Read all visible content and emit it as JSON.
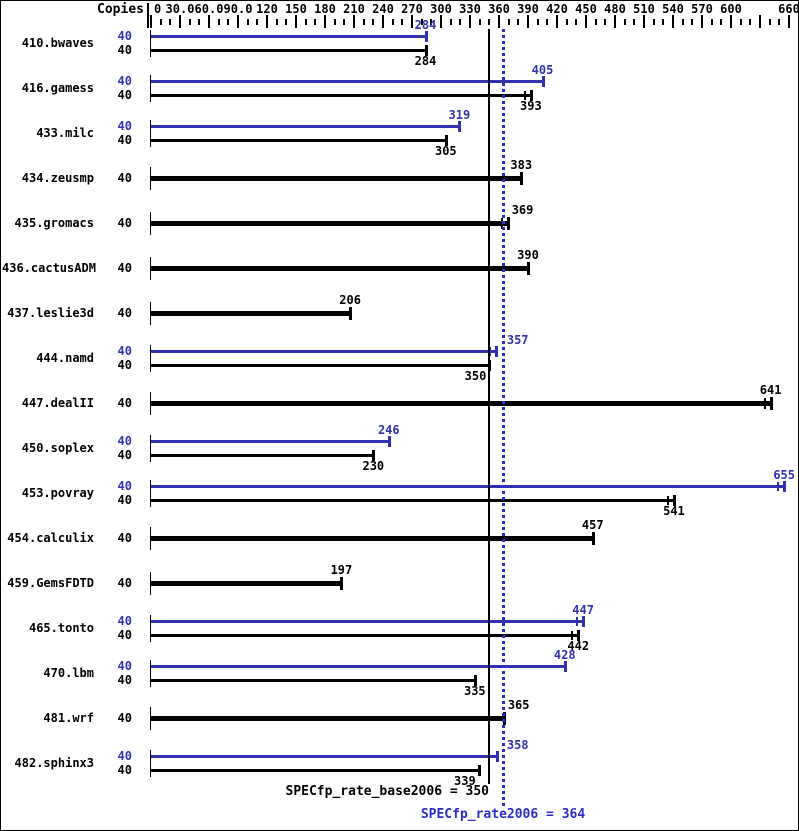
{
  "header": {
    "copies_label": "Copies"
  },
  "colors": {
    "peak": "#3232b0",
    "base": "#000000",
    "dotted_line": "#2b2bd0",
    "background": "#ffffff"
  },
  "axis": {
    "min": 0,
    "max": 660,
    "minor_step": 10,
    "major_step": 30,
    "labels": [
      {
        "v": 0,
        "t": "0"
      },
      {
        "v": 30,
        "t": "30.0"
      },
      {
        "v": 60,
        "t": "60.0"
      },
      {
        "v": 90,
        "t": "90.0"
      },
      {
        "v": 120,
        "t": "120"
      },
      {
        "v": 150,
        "t": "150"
      },
      {
        "v": 180,
        "t": "180"
      },
      {
        "v": 210,
        "t": "210"
      },
      {
        "v": 240,
        "t": "240"
      },
      {
        "v": 270,
        "t": "270"
      },
      {
        "v": 300,
        "t": "300"
      },
      {
        "v": 330,
        "t": "330"
      },
      {
        "v": 360,
        "t": "360"
      },
      {
        "v": 390,
        "t": "390"
      },
      {
        "v": 420,
        "t": "420"
      },
      {
        "v": 450,
        "t": "450"
      },
      {
        "v": 480,
        "t": "480"
      },
      {
        "v": 510,
        "t": "510"
      },
      {
        "v": 540,
        "t": "540"
      },
      {
        "v": 570,
        "t": "570"
      },
      {
        "v": 600,
        "t": "600"
      },
      {
        "v": 660,
        "t": "660"
      }
    ]
  },
  "chart_data": {
    "type": "bar",
    "orientation": "horizontal",
    "title": "",
    "xlabel": "",
    "ylabel": "Copies",
    "xlim": [
      0,
      660
    ],
    "legend": "blue = peak (SPECfp_rate2006), black = base (SPECfp_rate_base2006), bold bar = base and peak equal run",
    "benchmarks": [
      {
        "name": "410.bwaves",
        "bars": [
          {
            "kind": "peak",
            "copies": 40,
            "value": 284,
            "spread": false
          },
          {
            "kind": "base",
            "copies": 40,
            "value": 284,
            "spread": false
          }
        ]
      },
      {
        "name": "416.gamess",
        "bars": [
          {
            "kind": "peak",
            "copies": 40,
            "value": 405,
            "spread": false
          },
          {
            "kind": "base",
            "copies": 40,
            "value": 393,
            "spread": true
          }
        ]
      },
      {
        "name": "433.milc",
        "bars": [
          {
            "kind": "peak",
            "copies": 40,
            "value": 319,
            "spread": false
          },
          {
            "kind": "base",
            "copies": 40,
            "value": 305,
            "spread": false
          }
        ]
      },
      {
        "name": "434.zeusmp",
        "bars": [
          {
            "kind": "both",
            "copies": 40,
            "value": 383,
            "spread": false
          }
        ]
      },
      {
        "name": "435.gromacs",
        "bars": [
          {
            "kind": "both",
            "copies": 40,
            "value": 369,
            "spread": true
          }
        ]
      },
      {
        "name": "436.cactusADM",
        "bars": [
          {
            "kind": "both",
            "copies": 40,
            "value": 390,
            "spread": false
          }
        ]
      },
      {
        "name": "437.leslie3d",
        "bars": [
          {
            "kind": "both",
            "copies": 40,
            "value": 206,
            "spread": false
          }
        ]
      },
      {
        "name": "444.namd",
        "bars": [
          {
            "kind": "peak",
            "copies": 40,
            "value": 357,
            "spread": true
          },
          {
            "kind": "base",
            "copies": 40,
            "value": 350,
            "spread": false
          }
        ]
      },
      {
        "name": "447.dealII",
        "bars": [
          {
            "kind": "both",
            "copies": 40,
            "value": 641,
            "spread": true
          }
        ]
      },
      {
        "name": "450.soplex",
        "bars": [
          {
            "kind": "peak",
            "copies": 40,
            "value": 246,
            "spread": false
          },
          {
            "kind": "base",
            "copies": 40,
            "value": 230,
            "spread": false
          }
        ]
      },
      {
        "name": "453.povray",
        "bars": [
          {
            "kind": "peak",
            "copies": 40,
            "value": 655,
            "spread": true
          },
          {
            "kind": "base",
            "copies": 40,
            "value": 541,
            "spread": true
          }
        ]
      },
      {
        "name": "454.calculix",
        "bars": [
          {
            "kind": "both",
            "copies": 40,
            "value": 457,
            "spread": false
          }
        ]
      },
      {
        "name": "459.GemsFDTD",
        "bars": [
          {
            "kind": "both",
            "copies": 40,
            "value": 197,
            "spread": false
          }
        ]
      },
      {
        "name": "465.tonto",
        "bars": [
          {
            "kind": "peak",
            "copies": 40,
            "value": 447,
            "spread": true
          },
          {
            "kind": "base",
            "copies": 40,
            "value": 442,
            "spread": true
          }
        ]
      },
      {
        "name": "470.lbm",
        "bars": [
          {
            "kind": "peak",
            "copies": 40,
            "value": 428,
            "spread": false
          },
          {
            "kind": "base",
            "copies": 40,
            "value": 335,
            "spread": false
          }
        ]
      },
      {
        "name": "481.wrf",
        "bars": [
          {
            "kind": "both",
            "copies": 40,
            "value": 365,
            "spread": false
          }
        ]
      },
      {
        "name": "482.sphinx3",
        "bars": [
          {
            "kind": "peak",
            "copies": 40,
            "value": 358,
            "spread": false
          },
          {
            "kind": "base",
            "copies": 40,
            "value": 339,
            "spread": false
          }
        ]
      }
    ],
    "reference_lines": [
      {
        "id": "base",
        "value": 350,
        "style": "solid",
        "color": "#000000",
        "label": "SPECfp_rate_base2006 = 350"
      },
      {
        "id": "peak",
        "value": 364,
        "style": "dotted",
        "color": "#2b2bd0",
        "label": "SPECfp_rate2006 = 364"
      }
    ]
  },
  "summary": {
    "base_text": "SPECfp_rate_base2006 = 350",
    "peak_text": "SPECfp_rate2006 = 364"
  }
}
